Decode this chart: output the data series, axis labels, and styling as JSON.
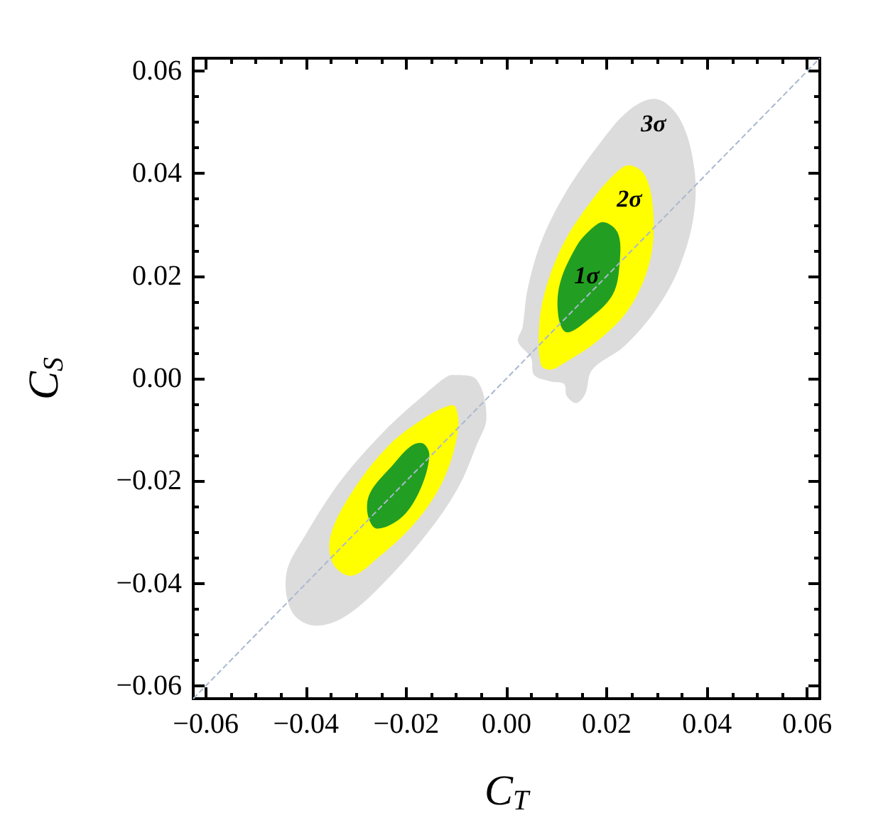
{
  "chart_data": {
    "type": "area",
    "xlabel": "C$_{T}$",
    "ylabel": "C$_{S}$",
    "xlim": [
      -0.0625,
      0.0625
    ],
    "ylim": [
      -0.0625,
      0.0625
    ],
    "xticks": [
      {
        "value": -0.06,
        "label": "−0.06"
      },
      {
        "value": -0.055,
        "label": null
      },
      {
        "value": -0.05,
        "label": null
      },
      {
        "value": -0.045,
        "label": null
      },
      {
        "value": -0.04,
        "label": "−0.04"
      },
      {
        "value": -0.035,
        "label": null
      },
      {
        "value": -0.03,
        "label": null
      },
      {
        "value": -0.025,
        "label": null
      },
      {
        "value": -0.02,
        "label": "−0.02"
      },
      {
        "value": -0.015,
        "label": null
      },
      {
        "value": -0.01,
        "label": null
      },
      {
        "value": -0.005,
        "label": null
      },
      {
        "value": 0,
        "label": "0.00"
      },
      {
        "value": 0.005,
        "label": null
      },
      {
        "value": 0.01,
        "label": null
      },
      {
        "value": 0.015,
        "label": null
      },
      {
        "value": 0.02,
        "label": "0.02"
      },
      {
        "value": 0.025,
        "label": null
      },
      {
        "value": 0.03,
        "label": null
      },
      {
        "value": 0.035,
        "label": null
      },
      {
        "value": 0.04,
        "label": "0.04"
      },
      {
        "value": 0.045,
        "label": null
      },
      {
        "value": 0.05,
        "label": null
      },
      {
        "value": 0.055,
        "label": null
      },
      {
        "value": 0.06,
        "label": "0.06"
      }
    ],
    "yticks": [
      {
        "value": -0.06,
        "label": "−0.06"
      },
      {
        "value": -0.055,
        "label": null
      },
      {
        "value": -0.05,
        "label": null
      },
      {
        "value": -0.045,
        "label": null
      },
      {
        "value": -0.04,
        "label": "−0.04"
      },
      {
        "value": -0.035,
        "label": null
      },
      {
        "value": -0.03,
        "label": null
      },
      {
        "value": -0.025,
        "label": null
      },
      {
        "value": -0.02,
        "label": "−0.02"
      },
      {
        "value": -0.015,
        "label": null
      },
      {
        "value": -0.01,
        "label": null
      },
      {
        "value": -0.005,
        "label": null
      },
      {
        "value": 0,
        "label": "0.00"
      },
      {
        "value": 0.005,
        "label": null
      },
      {
        "value": 0.01,
        "label": null
      },
      {
        "value": 0.015,
        "label": null
      },
      {
        "value": 0.02,
        "label": "0.02"
      },
      {
        "value": 0.025,
        "label": null
      },
      {
        "value": 0.03,
        "label": null
      },
      {
        "value": 0.035,
        "label": null
      },
      {
        "value": 0.04,
        "label": "0.04"
      },
      {
        "value": 0.045,
        "label": null
      },
      {
        "value": 0.05,
        "label": null
      },
      {
        "value": 0.055,
        "label": null
      },
      {
        "value": 0.06,
        "label": "0.06"
      }
    ],
    "series": [
      {
        "color": "#dcdcdc",
        "x": [
          0.03,
          0.0346,
          0.0374,
          0.0374,
          0.0346,
          0.03,
          0.0235,
          0.0171,
          0.0157,
          0.0139,
          0.012,
          0.0115,
          0.0088,
          0.0055,
          0.0049,
          0.0023,
          0.0032,
          0.0042,
          0.0069,
          0.0115,
          0.018,
          0.0245
        ],
        "values": [
          0.0545,
          0.0506,
          0.0414,
          0.0321,
          0.022,
          0.0137,
          0.0063,
          0.0017,
          -0.003,
          -0.0048,
          -0.0034,
          -0.0011,
          -0.0006,
          0.0007,
          0.004,
          0.0072,
          0.01,
          0.0174,
          0.0266,
          0.0358,
          0.0451,
          0.0524
        ]
      },
      {
        "color": "#dcdcdc",
        "x": [
          -0.0106,
          -0.006,
          -0.004,
          -0.006,
          -0.0097,
          -0.0162,
          -0.0254,
          -0.0328,
          -0.0388,
          -0.0429,
          -0.0439,
          -0.0402,
          -0.0328,
          -0.0235,
          -0.0162,
          -0.012
        ],
        "values": [
          0.0007,
          -0.0002,
          -0.0076,
          -0.0131,
          -0.0214,
          -0.0307,
          -0.0408,
          -0.0468,
          -0.0482,
          -0.0454,
          -0.038,
          -0.0307,
          -0.0196,
          -0.0094,
          -0.003,
          0.0003
        ]
      },
      {
        "color": "#ffff00",
        "x": [
          0.0245,
          0.0277,
          0.0293,
          0.0286,
          0.0245,
          0.018,
          0.0115,
          0.0088,
          0.0069,
          0.0065,
          0.0078,
          0.0115,
          0.0171,
          0.0217
        ],
        "values": [
          0.0416,
          0.0395,
          0.0321,
          0.0229,
          0.0137,
          0.0072,
          0.003,
          0.0017,
          0.0026,
          0.01,
          0.0174,
          0.0266,
          0.0349,
          0.04
        ]
      },
      {
        "color": "#ffff00",
        "x": [
          -0.0102,
          -0.0097,
          -0.0125,
          -0.018,
          -0.0254,
          -0.0309,
          -0.0346,
          -0.0351,
          -0.0309,
          -0.0235,
          -0.0162,
          -0.012
        ],
        "values": [
          -0.0055,
          -0.0103,
          -0.0196,
          -0.0279,
          -0.0348,
          -0.0385,
          -0.0362,
          -0.0307,
          -0.0223,
          -0.0131,
          -0.0076,
          -0.0055
        ]
      },
      {
        "color": "#229f22",
        "x": [
          0.0194,
          0.0222,
          0.0226,
          0.0212,
          0.0162,
          0.012,
          0.0104,
          0.0106,
          0.0139,
          0.0166
        ],
        "values": [
          0.0305,
          0.0284,
          0.0229,
          0.0164,
          0.0114,
          0.009,
          0.0118,
          0.0183,
          0.0257,
          0.0289
        ]
      },
      {
        "color": "#229f22",
        "x": [
          -0.0166,
          -0.0154,
          -0.0171,
          -0.0208,
          -0.0259,
          -0.0277,
          -0.0272,
          -0.0226,
          -0.0189
        ],
        "values": [
          -0.0127,
          -0.015,
          -0.0214,
          -0.027,
          -0.0293,
          -0.0265,
          -0.0223,
          -0.0168,
          -0.0131
        ]
      },
      {
        "type": "line",
        "color": "#a9b8d0",
        "line_style": "dashed",
        "marker": "none",
        "x": [
          -0.0625,
          0.0625
        ],
        "values": [
          -0.0625,
          0.0625
        ]
      }
    ],
    "annotations": [
      "3σ",
      "2σ",
      "1σ"
    ]
  }
}
